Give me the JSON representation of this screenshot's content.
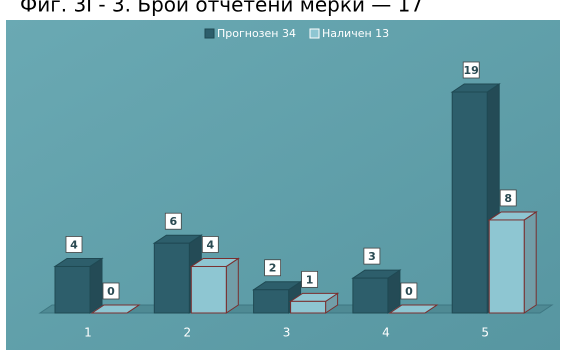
{
  "chart_data": {
    "type": "bar3d",
    "title": "Фиг. 3Г- 3. Брой отчетени мерки — 17",
    "categories": [
      "1",
      "2",
      "3",
      "4",
      "5"
    ],
    "series": [
      {
        "name": "Прогнозен 34",
        "color": "#2d5e6b",
        "values": [
          4,
          6,
          2,
          3,
          19
        ]
      },
      {
        "name": "Наличен 13",
        "color": "#8ec6d2",
        "values": [
          0,
          4,
          1,
          0,
          8
        ]
      }
    ],
    "legend": "top"
  }
}
